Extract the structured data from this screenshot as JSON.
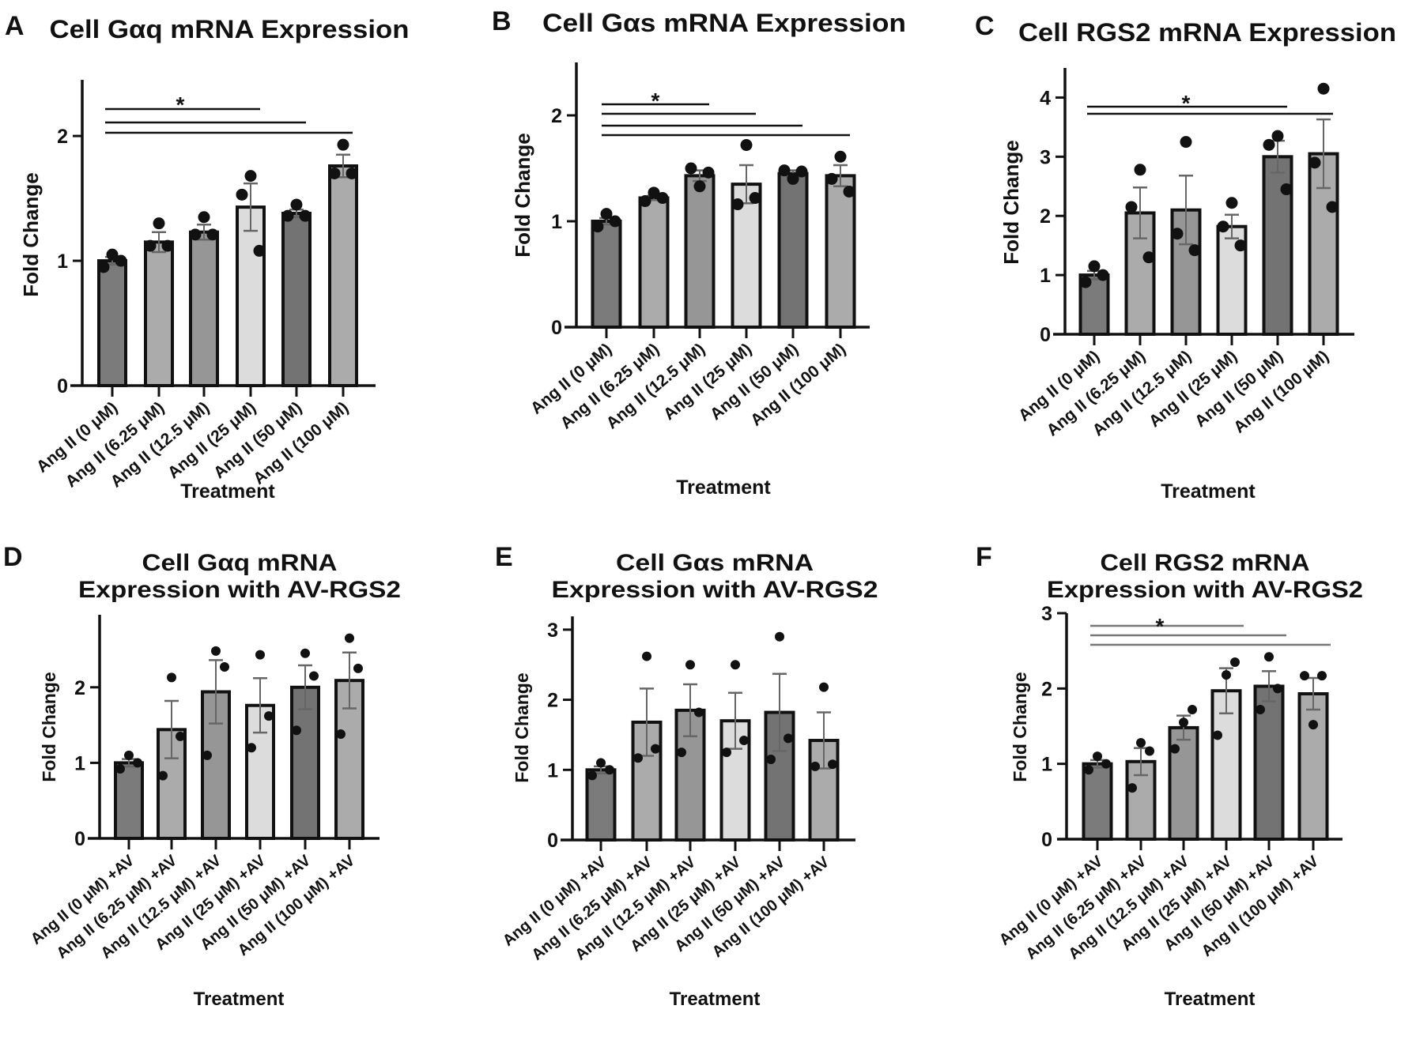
{
  "chart_data": [
    {
      "panel": "A",
      "type": "bar",
      "title": [
        "Cell Gαq mRNA Expression"
      ],
      "xlabel": "Treatment",
      "ylabel": "Fold Change",
      "categories": [
        "Ang II (0 μM)",
        "Ang II (6.25 μM)",
        "Ang II (12.5 μM)",
        "Ang II (25 μM)",
        "Ang II (50 μM)",
        "Ang II (100 μM)"
      ],
      "values": [
        1.0,
        1.15,
        1.23,
        1.43,
        1.38,
        1.76
      ],
      "errors": [
        0.03,
        0.08,
        0.06,
        0.19,
        0.03,
        0.09
      ],
      "points": [
        [
          1.05,
          0.95,
          1.0
        ],
        [
          1.3,
          1.12,
          1.12
        ],
        [
          1.35,
          1.21,
          1.21
        ],
        [
          1.68,
          1.53,
          1.08
        ],
        [
          1.45,
          1.36,
          1.36
        ],
        [
          1.93,
          1.7,
          1.7
        ]
      ],
      "yticks": [
        0,
        1,
        2
      ],
      "ylim": [
        0,
        2.45
      ],
      "significance": {
        "label": "*",
        "comparisons": [
          [
            0,
            3
          ],
          [
            0,
            4
          ],
          [
            0,
            5
          ]
        ]
      }
    },
    {
      "panel": "B",
      "type": "bar",
      "title": [
        "Cell Gαs mRNA Expression"
      ],
      "xlabel": "Treatment",
      "ylabel": "Fold Change",
      "categories": [
        "Ang II (0 μM)",
        "Ang II (6.25 μM)",
        "Ang II (12.5 μM)",
        "Ang II (25 μM)",
        "Ang II (50 μM)",
        "Ang II (100 μM)"
      ],
      "values": [
        1.0,
        1.22,
        1.43,
        1.35,
        1.45,
        1.43
      ],
      "errors": [
        0.03,
        0.02,
        0.05,
        0.18,
        0.03,
        0.1
      ],
      "points": [
        [
          1.07,
          0.95,
          1.0
        ],
        [
          1.27,
          1.19,
          1.22
        ],
        [
          1.33,
          1.5,
          1.46
        ],
        [
          1.72,
          1.16,
          1.22
        ],
        [
          1.4,
          1.48,
          1.47
        ],
        [
          1.61,
          1.4,
          1.28
        ]
      ],
      "yticks": [
        0,
        1,
        2
      ],
      "ylim": [
        0,
        2.5
      ],
      "significance": {
        "label": "*",
        "comparisons": [
          [
            0,
            2
          ],
          [
            0,
            3
          ],
          [
            0,
            4
          ],
          [
            0,
            5
          ]
        ]
      }
    },
    {
      "panel": "C",
      "type": "bar",
      "title": [
        "Cell RGS2 mRNA Expression"
      ],
      "xlabel": "Treatment",
      "ylabel": "Fold Change",
      "categories": [
        "Ang II (0 μM)",
        "Ang II (6.25 μM)",
        "Ang II (12.5 μM)",
        "Ang II (25 μM)",
        "Ang II (50 μM)",
        "Ang II (100 μM)"
      ],
      "values": [
        1.0,
        2.05,
        2.1,
        1.82,
        3.0,
        3.05
      ],
      "errors": [
        0.07,
        0.43,
        0.58,
        0.2,
        0.27,
        0.58
      ],
      "points": [
        [
          1.15,
          0.88,
          1.0
        ],
        [
          2.78,
          2.15,
          1.3
        ],
        [
          3.25,
          1.7,
          1.42
        ],
        [
          2.22,
          1.82,
          1.5
        ],
        [
          3.35,
          3.2,
          2.45
        ],
        [
          4.15,
          2.9,
          2.15
        ]
      ],
      "yticks": [
        0,
        1,
        2,
        3,
        4
      ],
      "ylim": [
        0,
        4.5
      ],
      "significance": {
        "label": "*",
        "comparisons": [
          [
            0,
            4
          ],
          [
            0,
            5
          ]
        ]
      }
    },
    {
      "panel": "D",
      "type": "bar",
      "title": [
        "Cell Gαq mRNA",
        "Expression with AV-RGS2"
      ],
      "xlabel": "Treatment",
      "ylabel": "Fold Change",
      "categories": [
        "Ang II (0 μM) +AV",
        "Ang II (6.25 μM) +AV",
        "Ang II (12.5 μM) +AV",
        "Ang II (25 μM) +AV",
        "Ang II (50 μM) +AV",
        "Ang II (100 μM) +AV"
      ],
      "values": [
        1.0,
        1.44,
        1.94,
        1.76,
        2.0,
        2.09
      ],
      "errors": [
        0.05,
        0.38,
        0.42,
        0.36,
        0.29,
        0.37
      ],
      "points": [
        [
          1.1,
          0.92,
          1.0
        ],
        [
          2.13,
          0.83,
          1.35
        ],
        [
          2.48,
          1.1,
          2.27
        ],
        [
          2.43,
          1.2,
          1.62
        ],
        [
          2.45,
          1.43,
          2.15
        ],
        [
          2.65,
          1.38,
          2.25
        ]
      ],
      "yticks": [
        0,
        1,
        2
      ],
      "ylim": [
        0,
        2.96
      ],
      "significance": null
    },
    {
      "panel": "E",
      "type": "bar",
      "title": [
        "Cell Gαs mRNA",
        "Expression with AV-RGS2"
      ],
      "xlabel": "Treatment",
      "ylabel": "Fold Change",
      "categories": [
        "Ang II (0 μM) +AV",
        "Ang II (6.25 μM) +AV",
        "Ang II (12.5 μM) +AV",
        "Ang II (25 μM) +AV",
        "Ang II (50 μM) +AV",
        "Ang II (100 μM) +AV"
      ],
      "values": [
        1.0,
        1.68,
        1.85,
        1.7,
        1.82,
        1.42
      ],
      "errors": [
        0.05,
        0.48,
        0.37,
        0.4,
        0.55,
        0.4
      ],
      "points": [
        [
          1.1,
          0.92,
          1.0
        ],
        [
          2.62,
          1.17,
          1.3
        ],
        [
          2.5,
          1.25,
          1.82
        ],
        [
          2.5,
          1.25,
          1.42
        ],
        [
          2.9,
          1.15,
          1.45
        ],
        [
          2.18,
          1.05,
          1.08
        ]
      ],
      "yticks": [
        0,
        1,
        2,
        3
      ],
      "ylim": [
        0,
        3.19
      ],
      "significance": null
    },
    {
      "panel": "F",
      "type": "bar",
      "title": [
        "Cell RGS2 mRNA",
        "Expression with AV-RGS2"
      ],
      "xlabel": "Treatment",
      "ylabel": "Fold Change",
      "categories": [
        "Ang II (0 μM) +AV",
        "Ang II (6.25 μM) +AV",
        "Ang II (12.5 μM) +AV",
        "Ang II (25 μM) +AV",
        "Ang II (50 μM) +AV",
        "Ang II (100 μM) +AV"
      ],
      "values": [
        1.0,
        1.03,
        1.48,
        1.97,
        2.03,
        1.93
      ],
      "errors": [
        0.05,
        0.18,
        0.16,
        0.3,
        0.2,
        0.21
      ],
      "points": [
        [
          1.1,
          0.92,
          1.0
        ],
        [
          1.28,
          0.68,
          1.17
        ],
        [
          1.55,
          1.2,
          1.72
        ],
        [
          2.18,
          1.38,
          2.35
        ],
        [
          2.42,
          1.72,
          2.0
        ],
        [
          1.52,
          2.17,
          2.17
        ]
      ],
      "yticks": [
        0,
        1,
        2,
        3
      ],
      "ylim": [
        0,
        3
      ],
      "significance": {
        "label": "*",
        "comparisons": [
          [
            0,
            3
          ],
          [
            0,
            4
          ],
          [
            0,
            5
          ]
        ]
      }
    }
  ],
  "colors": {
    "bar_fills": [
      "#7b7b7b",
      "#ababab",
      "#969696",
      "#dcdcdc",
      "#737373",
      "#ababab"
    ],
    "outline": "#111111",
    "error_bar": "#666666",
    "points": "#111111"
  }
}
